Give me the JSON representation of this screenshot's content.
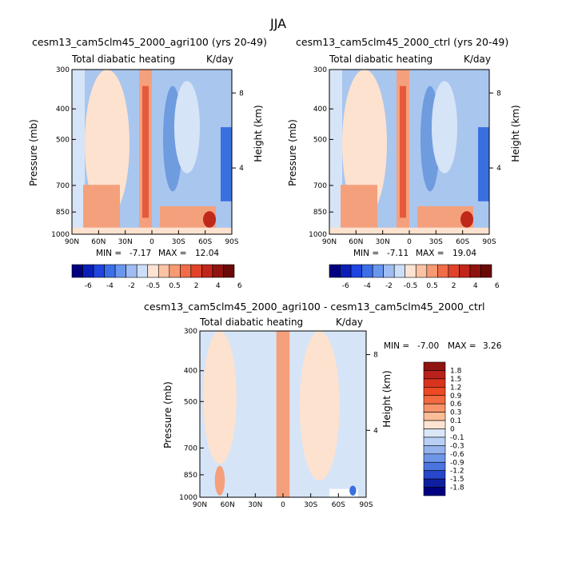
{
  "figure_title": "JJA",
  "colors": {
    "pos_light": "#fde2cf",
    "pos_mid": "#f5a07c",
    "pos_strong": "#e55a3c",
    "pos_peak": "#c0281a",
    "neg_light": "#d6e4f7",
    "neg_mid": "#a9c6ee",
    "neg_strong": "#6f9bdf",
    "neg_peak": "#3a6fe0"
  },
  "chart_data": [
    {
      "type": "heatmap",
      "title": "cesm13_cam5clm45_2000_agri100 (yrs 20-49)",
      "variable": "Total diabatic heating",
      "units": "K/day",
      "ylabel": "Pressure (mb)",
      "y2label": "Height (km)",
      "xticks": [
        "90N",
        "60N",
        "30N",
        "0",
        "30S",
        "60S",
        "90S"
      ],
      "yticks": [
        "300",
        "400",
        "500",
        "700",
        "850",
        "1000"
      ],
      "y2ticks": [
        "8",
        "4"
      ],
      "ylim": [
        1000,
        300
      ],
      "xlim": [
        "90N",
        "90S"
      ],
      "min_label": "MIN =",
      "min_value": "-7.17",
      "max_label": "MAX =",
      "max_value": "12.04"
    },
    {
      "type": "heatmap",
      "title": "cesm13_cam5clm45_2000_ctrl (yrs 20-49)",
      "variable": "Total diabatic heating",
      "units": "K/day",
      "ylabel": "Pressure (mb)",
      "y2label": "Height (km)",
      "xticks": [
        "90N",
        "60N",
        "30N",
        "0",
        "30S",
        "60S",
        "90S"
      ],
      "yticks": [
        "300",
        "400",
        "500",
        "700",
        "850",
        "1000"
      ],
      "y2ticks": [
        "8",
        "4"
      ],
      "ylim": [
        1000,
        300
      ],
      "xlim": [
        "90N",
        "90S"
      ],
      "min_label": "MIN =",
      "min_value": "-7.11",
      "max_label": "MAX =",
      "max_value": "19.04"
    },
    {
      "type": "heatmap",
      "title": "cesm13_cam5clm45_2000_agri100 - cesm13_cam5clm45_2000_ctrl",
      "variable": "Total diabatic heating",
      "units": "K/day",
      "ylabel": "Pressure (mb)",
      "y2label": "Height (km)",
      "xticks": [
        "90N",
        "60N",
        "30N",
        "0",
        "30S",
        "60S",
        "90S"
      ],
      "yticks": [
        "300",
        "400",
        "500",
        "700",
        "850",
        "1000"
      ],
      "y2ticks": [
        "8",
        "4"
      ],
      "ylim": [
        1000,
        300
      ],
      "xlim": [
        "90N",
        "90S"
      ],
      "min_label": "MIN =",
      "min_value": "-7.00",
      "max_label": "MAX =",
      "max_value": "3.26"
    }
  ],
  "colorbar_top": {
    "labels": [
      "-6",
      "-4",
      "-2",
      "-0.5",
      "0.5",
      "2",
      "4",
      "6"
    ],
    "colors": [
      "#000080",
      "#0a1fb8",
      "#1f44e0",
      "#3a6fe8",
      "#6a97ee",
      "#9fbdf2",
      "#cddff8",
      "#fde3d2",
      "#fbc3a4",
      "#f79a72",
      "#f06d47",
      "#e0432a",
      "#c0261a",
      "#8f1410",
      "#6a0a08"
    ]
  },
  "colorbar_diff": {
    "labels": [
      "1.8",
      "1.5",
      "1.2",
      "0.9",
      "0.6",
      "0.3",
      "0.1",
      "0",
      "-0.1",
      "-0.3",
      "-0.6",
      "-0.9",
      "-1.2",
      "-1.5",
      "-1.8"
    ],
    "colors": [
      "#8f1410",
      "#b8221a",
      "#d8341e",
      "#ec4a24",
      "#f26a42",
      "#f7946a",
      "#fbbd98",
      "#fde4d2",
      "#dbe7f8",
      "#b9cff3",
      "#95b4ee",
      "#6e96e8",
      "#4a74e0",
      "#2646cc",
      "#0e1fa0",
      "#000080"
    ]
  }
}
